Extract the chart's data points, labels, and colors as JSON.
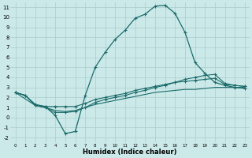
{
  "xlabel": "Humidex (Indice chaleur)",
  "background_color": "#cce9e9",
  "grid_color": "#aacccc",
  "line_color": "#1a6b6b",
  "xlim": [
    -0.5,
    23.5
  ],
  "ylim": [
    -2.5,
    11.5
  ],
  "xticks": [
    0,
    1,
    2,
    3,
    4,
    5,
    6,
    7,
    8,
    9,
    10,
    11,
    12,
    13,
    14,
    15,
    16,
    17,
    18,
    19,
    20,
    21,
    22,
    23
  ],
  "yticks": [
    -2,
    -1,
    0,
    1,
    2,
    3,
    4,
    5,
    6,
    7,
    8,
    9,
    10,
    11
  ],
  "curve1_x": [
    0,
    1,
    2,
    3,
    4,
    5,
    6,
    7,
    8,
    9,
    10,
    11,
    12,
    13,
    14,
    15,
    16,
    17,
    18,
    19,
    20,
    21,
    22,
    23
  ],
  "curve1_y": [
    2.5,
    2.2,
    1.3,
    1.1,
    0.2,
    -1.6,
    -1.4,
    2.2,
    5.0,
    6.5,
    7.8,
    8.7,
    9.9,
    10.3,
    11.1,
    11.2,
    10.4,
    8.5,
    5.5,
    4.4,
    3.5,
    3.2,
    3.0,
    2.9
  ],
  "curve2_x": [
    0,
    2,
    3,
    4,
    5,
    6,
    7,
    8,
    9,
    10,
    11,
    12,
    13,
    14,
    15,
    16,
    17,
    18,
    19,
    20,
    21,
    22,
    23
  ],
  "curve2_y": [
    2.5,
    1.2,
    1.1,
    1.1,
    1.1,
    1.1,
    1.4,
    1.8,
    2.0,
    2.2,
    2.4,
    2.7,
    2.9,
    3.1,
    3.3,
    3.5,
    3.6,
    3.7,
    3.8,
    3.9,
    3.3,
    3.2,
    3.1
  ],
  "curve3_x": [
    0,
    1,
    2,
    3,
    4,
    5,
    6,
    7,
    8,
    9,
    10,
    11,
    12,
    13,
    14,
    15,
    16,
    17,
    18,
    19,
    20,
    21,
    22,
    23
  ],
  "curve3_y": [
    2.5,
    2.2,
    1.2,
    1.0,
    0.7,
    0.6,
    0.7,
    1.0,
    1.3,
    1.5,
    1.7,
    1.9,
    2.1,
    2.3,
    2.5,
    2.6,
    2.7,
    2.8,
    2.8,
    2.9,
    3.0,
    3.0,
    3.0,
    3.0
  ],
  "curve4_x": [
    0,
    1,
    2,
    3,
    4,
    5,
    6,
    7,
    8,
    9,
    10,
    11,
    12,
    13,
    14,
    15,
    16,
    17,
    18,
    19,
    20,
    21,
    22,
    23
  ],
  "curve4_y": [
    2.5,
    2.2,
    1.2,
    1.0,
    0.5,
    0.5,
    0.6,
    1.0,
    1.5,
    1.8,
    2.0,
    2.2,
    2.5,
    2.7,
    3.0,
    3.2,
    3.5,
    3.8,
    4.0,
    4.2,
    4.3,
    3.4,
    3.2,
    3.1
  ],
  "xlabel_fontsize": 6,
  "tick_fontsize_x": 4,
  "tick_fontsize_y": 5
}
